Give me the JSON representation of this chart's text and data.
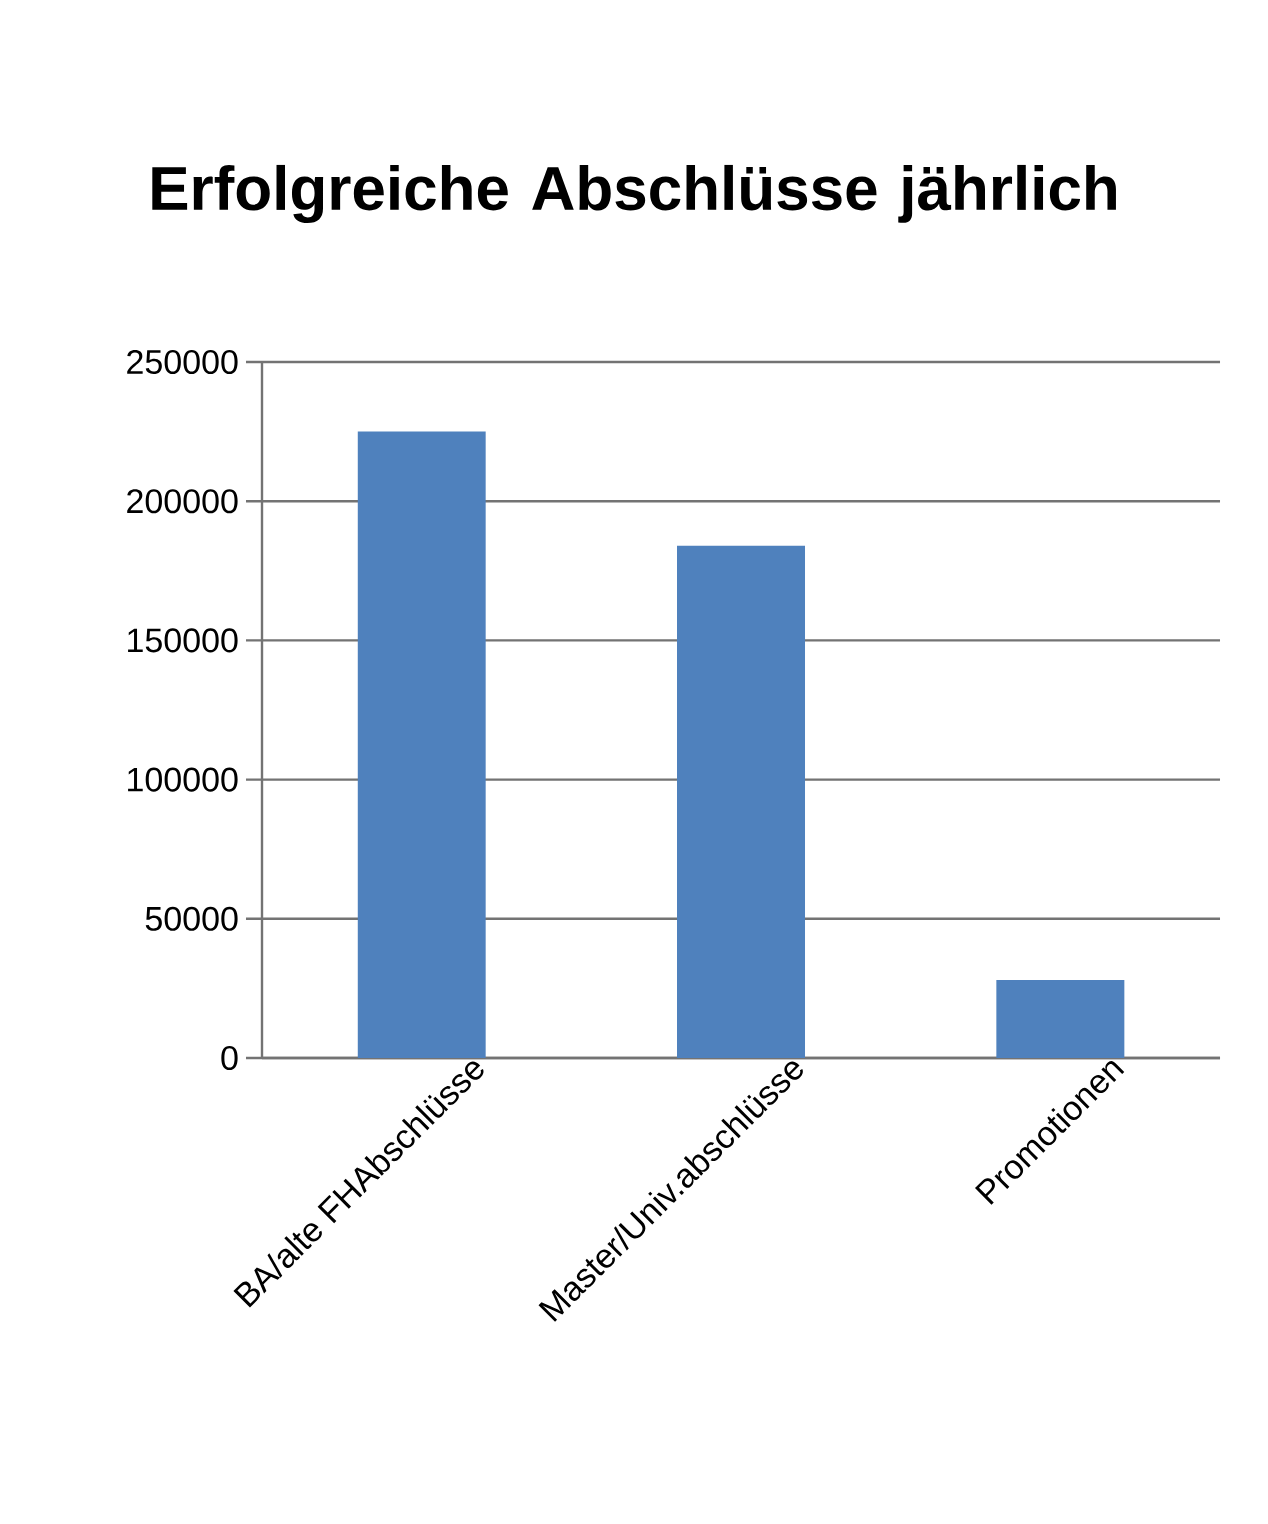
{
  "chart_data": {
    "type": "bar",
    "title": "Erfolgreiche Abschlüsse jährlich",
    "categories": [
      "BA/alte FHAbschlüsse",
      "Master/Univ.abschlüsse",
      "Promotionen"
    ],
    "values": [
      225000,
      184000,
      28000
    ],
    "color": "#4f81bd",
    "ylim": [
      0,
      250000
    ],
    "yticks": [
      0,
      50000,
      100000,
      150000,
      200000,
      250000
    ],
    "grid": "y"
  }
}
